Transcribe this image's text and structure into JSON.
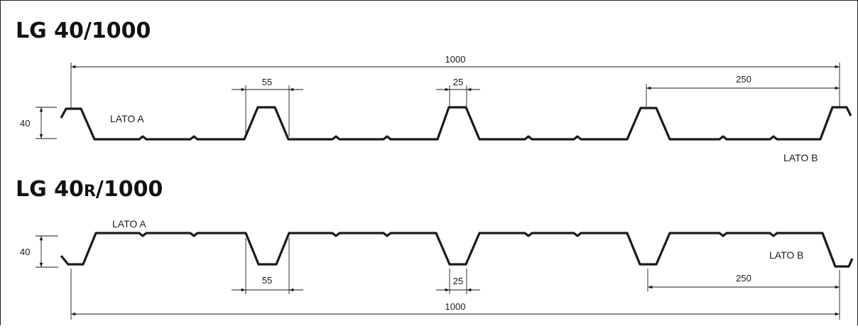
{
  "profile1": {
    "title_main": "LG 40/",
    "title_tail": "1000",
    "lato_a": "LATO A",
    "lato_b": "LATO B",
    "dim_total": "1000",
    "dim_rib_base": "55",
    "dim_rib_top": "25",
    "dim_pitch": "250",
    "dim_height": "40"
  },
  "profile2": {
    "title_main": "LG 40",
    "title_small": "R",
    "title_tail": "/1000",
    "lato_a": "LATO A",
    "lato_b": "LATO B",
    "dim_total": "1000",
    "dim_rib_base": "55",
    "dim_rib_top": "25",
    "dim_pitch": "250",
    "dim_height": "40"
  }
}
